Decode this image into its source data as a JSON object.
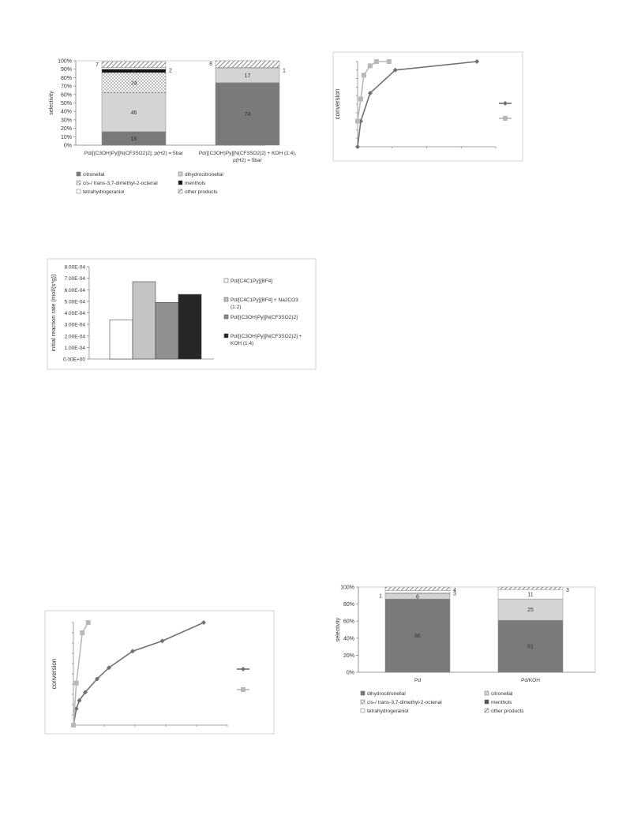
{
  "chart_data": [
    {
      "type": "bar",
      "stacked": true,
      "ylabel": "selectivity",
      "y_ticks": [
        "0%",
        "10%",
        "20%",
        "30%",
        "40%",
        "50%",
        "60%",
        "70%",
        "80%",
        "90%",
        "100%"
      ],
      "categories": [
        "Pd/[(C3OH)Py][N(CF3SO2)2], p(H2) =  5bar",
        "Pd/[(C3OH)Py][N(CF3SO2)2] + KOH (1:4), p(H2) =  5bar"
      ],
      "series": [
        {
          "name": "citronellal",
          "values": [
            16,
            74
          ],
          "labels": [
            "16",
            "74"
          ],
          "color": "#7a7a7a",
          "pattern": "solid"
        },
        {
          "name": "dihydrocitronellal",
          "values": [
            46,
            17
          ],
          "labels": [
            "46",
            "17"
          ],
          "color": "#d4d4d4",
          "pattern": "solid"
        },
        {
          "name": "cis-/ trans-3,7-dimethyl-2-octenal",
          "values": [
            24,
            0
          ],
          "labels": [
            "24",
            ""
          ],
          "color": "#ffffff",
          "pattern": "dots"
        },
        {
          "name": "menthols",
          "values": [
            4,
            0
          ],
          "labels": [
            "4",
            ""
          ],
          "color": "#111111",
          "pattern": "solid"
        },
        {
          "name": "tetrahydrogeraniol",
          "values": [
            2,
            1
          ],
          "labels": [
            "2",
            "1"
          ],
          "color": "#ffffff",
          "pattern": "solid"
        },
        {
          "name": "other products",
          "values": [
            7,
            8
          ],
          "labels": [
            "7",
            "8"
          ],
          "color": "#ffffff",
          "pattern": "hatch"
        }
      ],
      "legend": "bottom"
    },
    {
      "type": "line",
      "ylabel": "conversion",
      "legend": "right",
      "series": [
        {
          "marker": "diamond",
          "color": "#707070",
          "x": [
            0,
            0.5,
            2,
            6,
            19
          ],
          "y": [
            0,
            0.3,
            0.63,
            0.9,
            1.0
          ]
        },
        {
          "marker": "square",
          "color": "#b8b8b8",
          "x": [
            0,
            0.5,
            1,
            2,
            3,
            5
          ],
          "y": [
            0.3,
            0.56,
            0.84,
            0.95,
            1.0,
            1.0
          ]
        }
      ],
      "xlim": [
        0,
        22
      ],
      "ylim": [
        0,
        1
      ]
    },
    {
      "type": "bar",
      "ylabel": "initial reaction rate (mol/(s*g))",
      "y_ticks": [
        "0.00E+00",
        "1.00E-04",
        "2.00E-04",
        "3.00E-04",
        "4.00E-04",
        "5.00E-04",
        "6.00E-04",
        "7.00E-04",
        "8.00E-04"
      ],
      "ylim": [
        0,
        0.0008
      ],
      "categories": [
        "Pd/[C4C1Py][BF4]",
        "Pd/[C4C1Py][BF4] + Na2CO3 (1:2)",
        "Pd/[(C3OH)Py][N(CF3SO2)2]",
        "Pd/[(C3OH)Py][N(CF3SO2)2] + KOH (1:4)"
      ],
      "values": [
        0.00034,
        0.00067,
        0.00049,
        0.00056
      ],
      "colors": [
        "#ffffff",
        "#c4c4c4",
        "#8f8f8f",
        "#262626"
      ],
      "legend": "right"
    },
    {
      "type": "line",
      "ylabel": "conversion",
      "legend": "right",
      "series": [
        {
          "marker": "diamond",
          "color": "#707070",
          "x": [
            0,
            0.5,
            1,
            2,
            4,
            6,
            10,
            15,
            22
          ],
          "y": [
            0,
            0.16,
            0.24,
            0.32,
            0.45,
            0.56,
            0.72,
            0.82,
            1.0
          ]
        },
        {
          "marker": "square",
          "color": "#b8b8b8",
          "x": [
            0,
            0.5,
            1.5,
            2.5
          ],
          "y": [
            0,
            0.41,
            0.9,
            1.0
          ]
        }
      ],
      "xlim": [
        0,
        26
      ],
      "ylim": [
        0,
        1
      ]
    },
    {
      "type": "bar",
      "stacked": true,
      "ylabel": "selectivity",
      "y_ticks": [
        "0%",
        "20%",
        "40%",
        "60%",
        "80%",
        "100%"
      ],
      "categories": [
        "Pd",
        "Pd/KOH"
      ],
      "series": [
        {
          "name": "dihydrocitronellal",
          "values": [
            86,
            61
          ],
          "labels": [
            "86",
            "61"
          ],
          "color": "#7a7a7a",
          "pattern": "solid"
        },
        {
          "name": "citronellal",
          "values": [
            6,
            25
          ],
          "labels": [
            "6",
            "25"
          ],
          "color": "#d4d4d4",
          "pattern": "solid"
        },
        {
          "name": "cis-/ trans-3,7-dimethyl-2-octenal",
          "values": [
            1,
            0
          ],
          "labels": [
            "1",
            ""
          ],
          "color": "#ffffff",
          "pattern": "dots"
        },
        {
          "name": "menthols",
          "values": [
            0,
            0
          ],
          "labels": [
            "",
            ""
          ],
          "color": "#555555",
          "pattern": "solid"
        },
        {
          "name": "tetrahydrogeraniol",
          "values": [
            3,
            11
          ],
          "labels": [
            "3",
            "11"
          ],
          "color": "#ffffff",
          "pattern": "solid"
        },
        {
          "name": "other products",
          "values": [
            4,
            3
          ],
          "labels": [
            "4",
            "3"
          ],
          "color": "#ffffff",
          "pattern": "hatch"
        }
      ],
      "legend": "bottom"
    }
  ]
}
